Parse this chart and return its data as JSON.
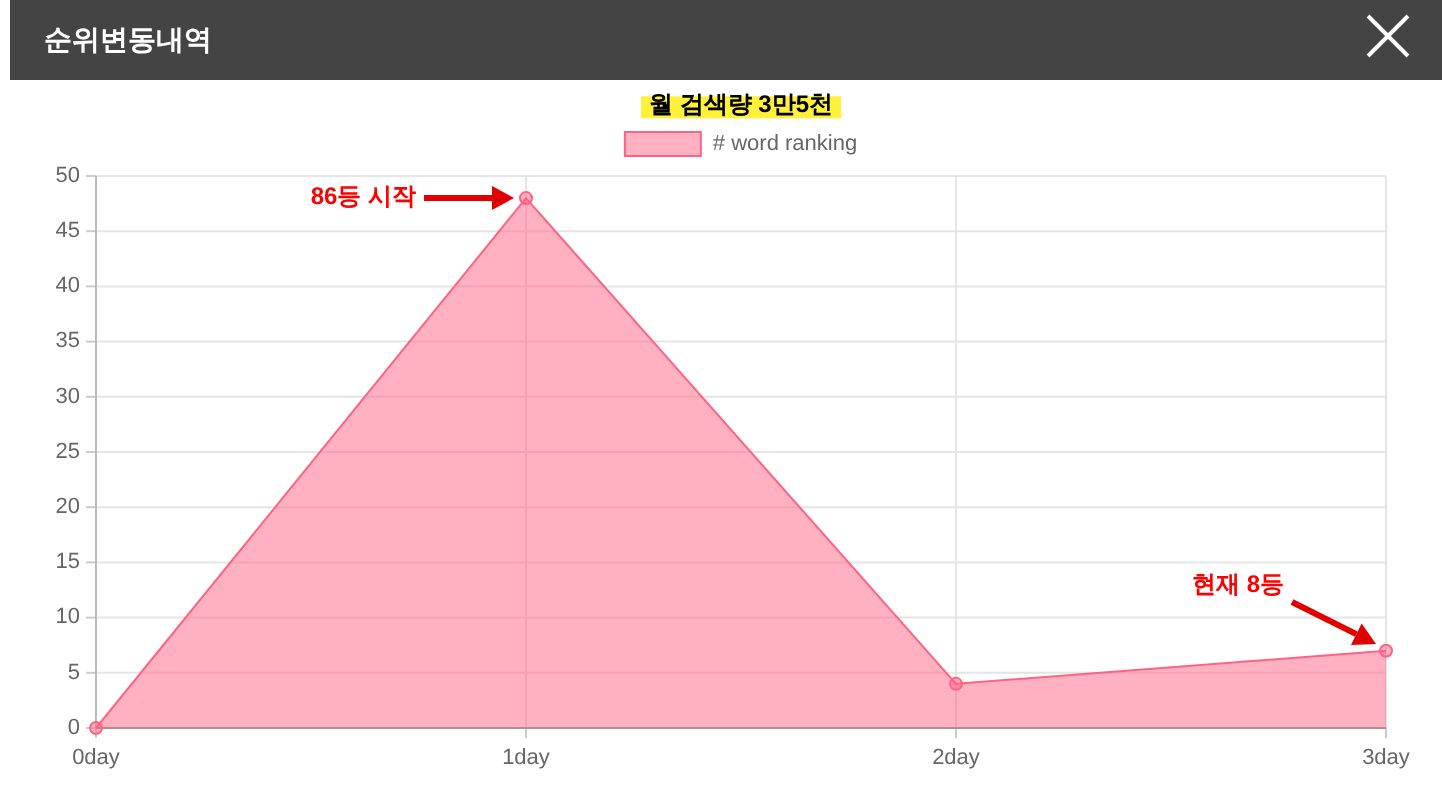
{
  "chart_data": {
    "type": "area",
    "title": "순위변동내역",
    "subtitle": "월 검색량 3만5천",
    "categories": [
      "0day",
      "1day",
      "2day",
      "3day"
    ],
    "series": [
      {
        "name": "# word ranking",
        "color": "#ff6384",
        "values": [
          0,
          48,
          4,
          7
        ]
      }
    ],
    "ylim": [
      0,
      50
    ],
    "yticks": [
      0,
      5,
      10,
      15,
      20,
      25,
      30,
      35,
      40,
      45,
      50
    ],
    "grid": true,
    "legend": "top",
    "marker": "circle",
    "annotations": [
      "86등 시작",
      "현재 8등"
    ]
  }
}
